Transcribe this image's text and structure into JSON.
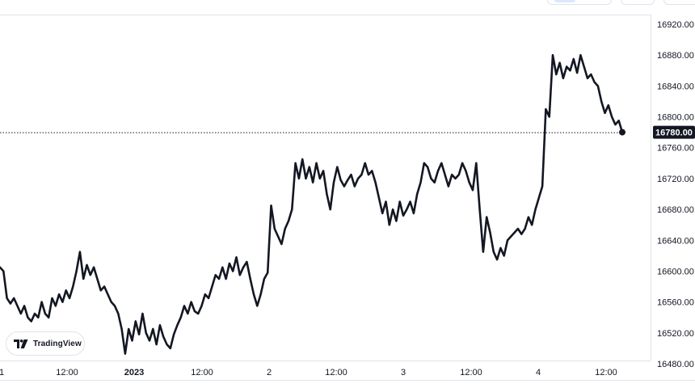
{
  "brand": {
    "label": "TradingView",
    "logo_icon": "tradingview-logo-icon"
  },
  "toolbar": {
    "buttons": [
      "range-button",
      "settings-button",
      "fullscreen-button"
    ]
  },
  "colors": {
    "line": "#131722",
    "axis_text": "#131722",
    "price_tag_bg": "#131722",
    "price_tag_text": "#ffffff",
    "border": "#e0e3eb"
  },
  "chart_data": {
    "type": "line",
    "title": "",
    "xlabel": "",
    "ylabel": "",
    "ylim": [
      16460,
      16930
    ],
    "y_ticks": [
      16920,
      16880,
      16840,
      16800,
      16760,
      16720,
      16680,
      16640,
      16600,
      16560,
      16520,
      16480
    ],
    "y_tick_labels": [
      "16920.00",
      "16880.00",
      "16840.00",
      "16800.00",
      "16760.00",
      "16720.00",
      "16680.00",
      "16640.00",
      "16600.00",
      "16560.00",
      "16520.00",
      "16480.00"
    ],
    "x_tick_labels": [
      "1",
      "12:00",
      "2023",
      "12:00",
      "2",
      "12:00",
      "3",
      "12:00",
      "4",
      "12:00"
    ],
    "current_price": 16780,
    "current_price_label": "16780.00",
    "grid": false,
    "series": [
      {
        "values": [
          16605,
          16600,
          16565,
          16558,
          16565,
          16555,
          16545,
          16555,
          16540,
          16535,
          16545,
          16540,
          16560,
          16545,
          16540,
          16565,
          16555,
          16570,
          16560,
          16575,
          16565,
          16580,
          16600,
          16625,
          16590,
          16608,
          16595,
          16605,
          16590,
          16575,
          16580,
          16570,
          16560,
          16555,
          16545,
          16525,
          16493,
          16525,
          16510,
          16535,
          16518,
          16545,
          16520,
          16510,
          16525,
          16505,
          16530,
          16515,
          16505,
          16500,
          16518,
          16530,
          16540,
          16555,
          16545,
          16560,
          16548,
          16545,
          16555,
          16570,
          16565,
          16580,
          16595,
          16590,
          16605,
          16590,
          16610,
          16600,
          16618,
          16595,
          16605,
          16612,
          16590,
          16570,
          16555,
          16570,
          16590,
          16598,
          16685,
          16655,
          16645,
          16635,
          16655,
          16665,
          16680,
          16740,
          16720,
          16745,
          16720,
          16735,
          16715,
          16740,
          16720,
          16730,
          16700,
          16680,
          16715,
          16735,
          16718,
          16710,
          16718,
          16725,
          16710,
          16720,
          16725,
          16740,
          16725,
          16730,
          16715,
          16695,
          16675,
          16690,
          16660,
          16680,
          16665,
          16690,
          16672,
          16680,
          16690,
          16675,
          16700,
          16715,
          16740,
          16735,
          16720,
          16715,
          16730,
          16740,
          16725,
          16710,
          16725,
          16720,
          16725,
          16740,
          16730,
          16715,
          16705,
          16740,
          16680,
          16625,
          16670,
          16650,
          16625,
          16615,
          16630,
          16620,
          16640,
          16645,
          16650,
          16655,
          16648,
          16655,
          16670,
          16660,
          16680,
          16695,
          16710,
          16810,
          16800,
          16880,
          16855,
          16870,
          16850,
          16865,
          16860,
          16875,
          16857,
          16880,
          16865,
          16850,
          16855,
          16845,
          16840,
          16820,
          16805,
          16815,
          16800,
          16790,
          16795,
          16780
        ]
      }
    ]
  }
}
